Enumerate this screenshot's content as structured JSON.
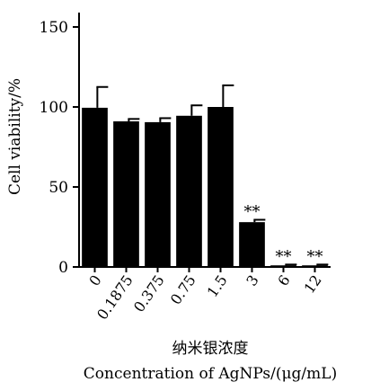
{
  "chart_data": {
    "type": "bar",
    "categories": [
      "0",
      "0.1875",
      "0.375",
      "0.75",
      "1.5",
      "3",
      "6",
      "12"
    ],
    "values": [
      99.5,
      91,
      90.5,
      94.5,
      100,
      28,
      1,
      1
    ],
    "errors": [
      13,
      1.5,
      2.5,
      6.5,
      13.5,
      1.5,
      0.5,
      0.5
    ],
    "annotations": [
      "",
      "",
      "",
      "",
      "",
      "**",
      "**",
      "**"
    ],
    "ylabel": "Cell viability/%",
    "xlabel_cn": "纳米银浓度",
    "xlabel": "Concentration of AgNPs/(μg/mL)",
    "ylim": [
      0,
      150
    ],
    "yticks": [
      "0",
      "50",
      "100",
      "150"
    ],
    "grid": false,
    "bar_color": "#000000"
  }
}
